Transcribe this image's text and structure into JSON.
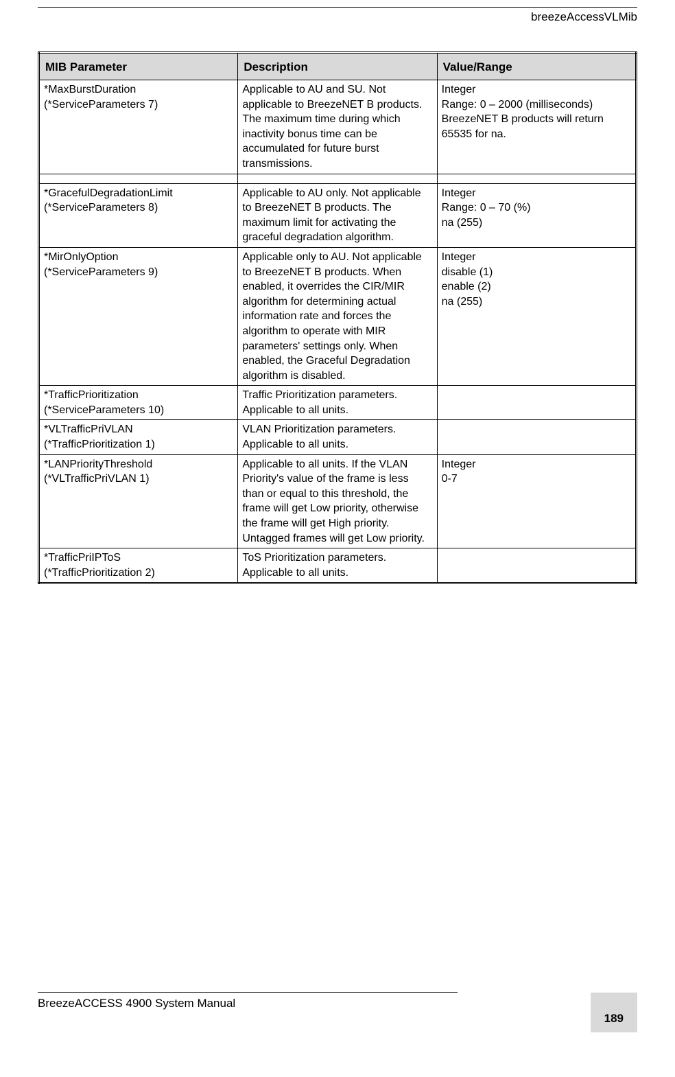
{
  "header": {
    "section": "breezeAccessVLMib"
  },
  "table": {
    "columns": [
      "MIB Parameter",
      "Description",
      "Value/Range"
    ],
    "rows": [
      {
        "param": "*MaxBurstDuration\n(*ServiceParameters 7)",
        "desc": "Applicable to AU and SU. Not applicable to BreezeNET B products. The maximum time during which inactivity bonus time can be accumulated for future burst transmissions.",
        "range": "Integer\nRange: 0 – 2000 (milliseconds)\nBreezeNET B products will return 65535 for na.",
        "spacer_after": true
      },
      {
        "param": "*GracefulDegradationLimit\n(*ServiceParameters 8)",
        "desc": "Applicable to AU only. Not applicable to BreezeNET B products. The maximum limit for activating the graceful degradation algorithm.",
        "range": "Integer\nRange: 0 – 70 (%)\nna (255)"
      },
      {
        "param": "*MirOnlyOption\n(*ServiceParameters 9)",
        "desc": "Applicable only to AU. Not applicable to BreezeNET B products. When enabled, it overrides the CIR/MIR algorithm for determining actual information rate and forces the algorithm to operate with MIR parameters' settings only. When enabled, the Graceful Degradation algorithm is disabled.",
        "range": "Integer\ndisable (1)\nenable (2)\nna (255)"
      },
      {
        "param": "*TrafficPrioritization\n(*ServiceParameters 10)",
        "desc": "Traffic Prioritization parameters. Applicable to all units.",
        "range": ""
      },
      {
        "param": "*VLTrafficPriVLAN\n(*TrafficPrioritization 1)",
        "desc": "VLAN Prioritization parameters. Applicable to all units.",
        "range": ""
      },
      {
        "param": "*LANPriorityThreshold\n(*VLTrafficPriVLAN 1)",
        "desc": "Applicable to all units. If the VLAN Priority's value of the frame is less than or equal to this threshold, the frame will get Low priority, otherwise the frame will get High priority. Untagged frames will get Low priority.",
        "range": "Integer\n0-7"
      },
      {
        "param": "*TrafficPriIPToS\n(*TrafficPrioritization 2)",
        "desc": "ToS Prioritization parameters. Applicable to all units.",
        "range": ""
      }
    ]
  },
  "footer": {
    "manual": "BreezeACCESS 4900 System Manual",
    "page": "189"
  }
}
